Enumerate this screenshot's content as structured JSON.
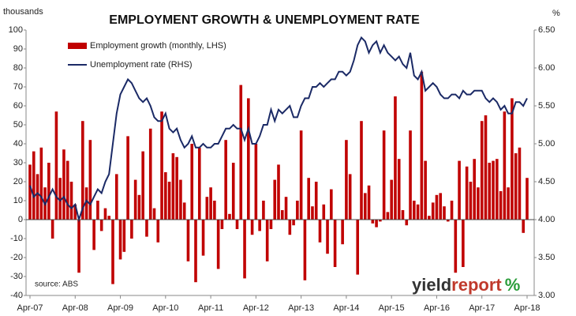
{
  "chart_data": {
    "type": "bar-line",
    "title": "EMPLOYMENT GROWTH & UNEMPLOYMENT RATE",
    "y_label": "thousands",
    "y2_label": "%",
    "source": "source: ABS",
    "logo": [
      "yield",
      "report",
      "%"
    ],
    "categories": [
      "Apr-07",
      null,
      null,
      null,
      null,
      null,
      null,
      null,
      null,
      null,
      null,
      null,
      "Apr-08",
      null,
      null,
      null,
      null,
      null,
      null,
      null,
      null,
      null,
      null,
      null,
      "Apr-09",
      null,
      null,
      null,
      null,
      null,
      null,
      null,
      null,
      null,
      null,
      null,
      "Apr-10",
      null,
      null,
      null,
      null,
      null,
      null,
      null,
      null,
      null,
      null,
      null,
      "Apr-11",
      null,
      null,
      null,
      null,
      null,
      null,
      null,
      null,
      null,
      null,
      null,
      "Apr-12",
      null,
      null,
      null,
      null,
      null,
      null,
      null,
      null,
      null,
      null,
      null,
      "Apr-13",
      null,
      null,
      null,
      null,
      null,
      null,
      null,
      null,
      null,
      null,
      null,
      "Apr-14",
      null,
      null,
      null,
      null,
      null,
      null,
      null,
      null,
      null,
      null,
      null,
      "Apr-15",
      null,
      null,
      null,
      null,
      null,
      null,
      null,
      null,
      null,
      null,
      null,
      "Apr-16",
      null,
      null,
      null,
      null,
      null,
      null,
      null,
      null,
      null,
      null,
      null,
      "Apr-17",
      null,
      null,
      null,
      null,
      null,
      null,
      null,
      null,
      null,
      null,
      null,
      "Apr-18"
    ],
    "series": [
      {
        "name": "Employment growth (monthly, LHS)",
        "color": "#c00000",
        "type": "bar",
        "values": [
          29,
          36,
          24,
          38,
          17,
          30,
          -10,
          57,
          22,
          37,
          31,
          20,
          8,
          -28,
          52,
          17,
          42,
          -16,
          10,
          -6,
          6,
          2,
          -34,
          24,
          -21,
          -17,
          44,
          -10,
          21,
          13,
          36,
          -9,
          48,
          6,
          -12,
          57,
          25,
          20,
          35,
          33,
          21,
          9,
          -22,
          40,
          -33,
          38,
          -19,
          12,
          17,
          10,
          -26,
          -5,
          42,
          3,
          30,
          -5,
          71,
          -31,
          64,
          -8,
          40,
          -6,
          10,
          -22,
          -5,
          21,
          29,
          5,
          12,
          -8,
          -3,
          10,
          47,
          -32,
          22,
          7,
          20,
          -12,
          8,
          -18,
          16,
          -25,
          0,
          -13,
          42,
          24,
          0,
          -29,
          52,
          14,
          18,
          -2,
          -4,
          -1,
          47,
          4,
          21,
          65,
          32,
          5,
          -3,
          47,
          10,
          8,
          78,
          31,
          2,
          9,
          13,
          14,
          7,
          -1,
          10,
          -28,
          31,
          -25,
          28,
          20,
          32,
          17,
          52,
          55,
          30,
          31,
          32,
          15,
          57,
          17,
          64,
          35,
          38,
          -7,
          22
        ]
      },
      {
        "name": "Unemployment rate (RHS)",
        "color": "#1b2a66",
        "type": "line",
        "axis": "y2",
        "values": [
          4.45,
          4.3,
          4.35,
          4.3,
          4.2,
          4.3,
          4.4,
          4.3,
          4.25,
          4.3,
          4.2,
          4.15,
          4.2,
          4.0,
          4.15,
          4.25,
          4.2,
          4.3,
          4.4,
          4.35,
          4.5,
          4.6,
          5.0,
          5.4,
          5.65,
          5.75,
          5.85,
          5.8,
          5.7,
          5.6,
          5.55,
          5.6,
          5.5,
          5.35,
          5.3,
          5.3,
          5.4,
          5.2,
          5.15,
          5.2,
          5.05,
          4.95,
          5.0,
          5.1,
          4.95,
          4.95,
          5.0,
          4.95,
          4.95,
          5.0,
          5.0,
          5.1,
          5.2,
          5.2,
          5.25,
          5.2,
          5.2,
          5.05,
          5.2,
          5.0,
          5.0,
          5.1,
          5.25,
          5.25,
          5.45,
          5.3,
          5.45,
          5.4,
          5.45,
          5.5,
          5.35,
          5.35,
          5.5,
          5.6,
          5.6,
          5.75,
          5.75,
          5.8,
          5.75,
          5.8,
          5.85,
          5.85,
          5.95,
          5.95,
          5.9,
          5.95,
          6.1,
          6.3,
          6.4,
          6.35,
          6.2,
          6.3,
          6.35,
          6.2,
          6.3,
          6.2,
          6.15,
          6.1,
          6.15,
          6.05,
          6.0,
          6.2,
          5.9,
          5.85,
          5.95,
          5.7,
          5.75,
          5.8,
          5.75,
          5.65,
          5.6,
          5.6,
          5.65,
          5.65,
          5.6,
          5.7,
          5.65,
          5.65,
          5.7,
          5.7,
          5.7,
          5.6,
          5.55,
          5.6,
          5.55,
          5.45,
          5.5,
          5.4,
          5.4,
          5.55,
          5.55,
          5.5,
          5.6
        ]
      }
    ],
    "ylim": [
      -40,
      100
    ],
    "yticks": [
      -40,
      -30,
      -20,
      -10,
      0,
      10,
      20,
      30,
      40,
      50,
      60,
      70,
      80,
      90,
      100
    ],
    "y2lim": [
      3,
      6.5
    ],
    "y2ticks": [
      {
        "value": 3,
        "label": "3.00"
      },
      {
        "value": 3.5,
        "label": "3.50"
      },
      {
        "value": 4,
        "label": "4.00"
      },
      {
        "value": 4.5,
        "label": "4.50"
      },
      {
        "value": 5,
        "label": "5.00"
      },
      {
        "value": 5.5,
        "label": "5.50"
      },
      {
        "value": 6,
        "label": "6.00"
      },
      {
        "value": 6.5,
        "label": "6.50"
      }
    ]
  }
}
